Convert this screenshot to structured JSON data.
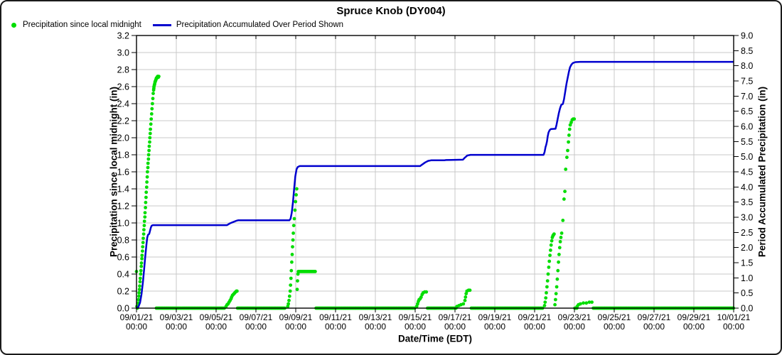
{
  "chart_data": {
    "type": "mixed",
    "title": "Spruce Knob (DY004)",
    "grid": true,
    "legend_position": "top-left",
    "colors": {
      "grid": "#c8c8c8",
      "axis": "#000000",
      "background": "#ffffff"
    },
    "x_axis": {
      "label": "Date/Time (EDT)",
      "range_days": [
        0,
        30
      ],
      "tick_interval_days": 2,
      "tick_labels": [
        [
          "09/01/21",
          "00:00"
        ],
        [
          "09/03/21",
          "00:00"
        ],
        [
          "09/05/21",
          "00:00"
        ],
        [
          "09/07/21",
          "00:00"
        ],
        [
          "09/09/21",
          "00:00"
        ],
        [
          "09/11/21",
          "00:00"
        ],
        [
          "09/13/21",
          "00:00"
        ],
        [
          "09/15/21",
          "00:00"
        ],
        [
          "09/17/21",
          "00:00"
        ],
        [
          "09/19/21",
          "00:00"
        ],
        [
          "09/21/21",
          "00:00"
        ],
        [
          "09/23/21",
          "00:00"
        ],
        [
          "09/25/21",
          "00:00"
        ],
        [
          "09/27/21",
          "00:00"
        ],
        [
          "09/29/21",
          "00:00"
        ],
        [
          "10/01/21",
          "00:00"
        ]
      ]
    },
    "y_left": {
      "label": "Precipitation since local midnight (in)",
      "min": 0,
      "max": 3.2,
      "tick_step": 0.2
    },
    "y_right": {
      "label": "Period Accumulated Precipitation (in)",
      "min": 0,
      "max": 9.0,
      "tick_step": 0.5
    },
    "series": [
      {
        "name": "Precipitation since local midnight",
        "type": "scatter",
        "axis": "left",
        "color": "#00dd00",
        "points": [
          [
            0.0,
            0.43
          ],
          [
            0.02,
            0.02
          ],
          [
            0.04,
            0.0
          ],
          [
            0.06,
            0.02
          ],
          [
            0.08,
            0.06
          ],
          [
            0.1,
            0.1
          ],
          [
            0.12,
            0.14
          ],
          [
            0.13,
            0.18
          ],
          [
            0.15,
            0.22
          ],
          [
            0.16,
            0.26
          ],
          [
            0.18,
            0.31
          ],
          [
            0.19,
            0.35
          ],
          [
            0.21,
            0.4
          ],
          [
            0.22,
            0.44
          ],
          [
            0.24,
            0.49
          ],
          [
            0.25,
            0.53
          ],
          [
            0.27,
            0.58
          ],
          [
            0.28,
            0.62
          ],
          [
            0.3,
            0.67
          ],
          [
            0.31,
            0.72
          ],
          [
            0.33,
            0.77
          ],
          [
            0.34,
            0.82
          ],
          [
            0.36,
            0.87
          ],
          [
            0.37,
            0.92
          ],
          [
            0.39,
            0.97
          ],
          [
            0.4,
            1.02
          ],
          [
            0.42,
            1.07
          ],
          [
            0.43,
            1.12
          ],
          [
            0.45,
            1.18
          ],
          [
            0.46,
            1.24
          ],
          [
            0.48,
            1.3
          ],
          [
            0.49,
            1.36
          ],
          [
            0.51,
            1.42
          ],
          [
            0.52,
            1.48
          ],
          [
            0.54,
            1.54
          ],
          [
            0.55,
            1.6
          ],
          [
            0.57,
            1.65
          ],
          [
            0.58,
            1.7
          ],
          [
            0.6,
            1.75
          ],
          [
            0.61,
            1.8
          ],
          [
            0.63,
            1.85
          ],
          [
            0.64,
            1.9
          ],
          [
            0.66,
            1.95
          ],
          [
            0.67,
            2.0
          ],
          [
            0.69,
            2.05
          ],
          [
            0.7,
            2.1
          ],
          [
            0.72,
            2.16
          ],
          [
            0.74,
            2.22
          ],
          [
            0.76,
            2.28
          ],
          [
            0.78,
            2.34
          ],
          [
            0.8,
            2.4
          ],
          [
            0.82,
            2.46
          ],
          [
            0.84,
            2.52
          ],
          [
            0.86,
            2.56
          ],
          [
            0.87,
            2.58
          ],
          [
            0.88,
            2.6
          ],
          [
            0.9,
            2.62
          ],
          [
            0.91,
            2.63
          ],
          [
            0.93,
            2.65
          ],
          [
            0.94,
            2.66
          ],
          [
            0.96,
            2.67
          ],
          [
            0.97,
            2.68
          ],
          [
            0.99,
            2.69
          ],
          [
            1.0,
            2.7
          ],
          [
            1.02,
            2.7
          ],
          [
            1.04,
            2.71
          ],
          [
            1.06,
            2.72
          ],
          [
            1.08,
            2.72
          ],
          [
            1.1,
            2.71
          ],
          [
            1.12,
            2.72
          ],
          [
            4.5,
            0.02
          ],
          [
            4.55,
            0.04
          ],
          [
            4.6,
            0.05
          ],
          [
            4.65,
            0.07
          ],
          [
            4.7,
            0.09
          ],
          [
            4.75,
            0.11
          ],
          [
            4.78,
            0.13
          ],
          [
            4.82,
            0.15
          ],
          [
            4.86,
            0.16
          ],
          [
            4.9,
            0.17
          ],
          [
            4.94,
            0.18
          ],
          [
            4.98,
            0.19
          ],
          [
            5.02,
            0.2
          ],
          [
            5.05,
            0.2
          ],
          [
            7.6,
            0.02
          ],
          [
            7.63,
            0.05
          ],
          [
            7.66,
            0.09
          ],
          [
            7.69,
            0.14
          ],
          [
            7.72,
            0.2
          ],
          [
            7.74,
            0.27
          ],
          [
            7.76,
            0.35
          ],
          [
            7.78,
            0.44
          ],
          [
            7.8,
            0.54
          ],
          [
            7.82,
            0.63
          ],
          [
            7.84,
            0.72
          ],
          [
            7.86,
            0.8
          ],
          [
            7.88,
            0.88
          ],
          [
            7.9,
            0.97
          ],
          [
            7.93,
            1.05
          ],
          [
            7.96,
            1.15
          ],
          [
            7.99,
            1.25
          ],
          [
            8.02,
            1.33
          ],
          [
            8.05,
            1.4
          ],
          [
            8.07,
            0.22
          ],
          [
            8.09,
            0.32
          ],
          [
            8.11,
            0.4
          ],
          [
            14.08,
            0.02
          ],
          [
            14.12,
            0.05
          ],
          [
            14.16,
            0.08
          ],
          [
            14.2,
            0.1
          ],
          [
            14.25,
            0.11
          ],
          [
            14.3,
            0.13
          ],
          [
            14.35,
            0.16
          ],
          [
            14.4,
            0.18
          ],
          [
            14.48,
            0.19
          ],
          [
            14.56,
            0.19
          ],
          [
            16.1,
            0.02
          ],
          [
            16.2,
            0.03
          ],
          [
            16.3,
            0.04
          ],
          [
            16.42,
            0.05
          ],
          [
            16.5,
            0.09
          ],
          [
            16.53,
            0.13
          ],
          [
            16.56,
            0.17
          ],
          [
            16.6,
            0.2
          ],
          [
            16.68,
            0.21
          ],
          [
            16.75,
            0.21
          ],
          [
            20.5,
            0.03
          ],
          [
            20.53,
            0.07
          ],
          [
            20.56,
            0.12
          ],
          [
            20.59,
            0.18
          ],
          [
            20.62,
            0.25
          ],
          [
            20.65,
            0.32
          ],
          [
            20.68,
            0.4
          ],
          [
            20.71,
            0.48
          ],
          [
            20.74,
            0.55
          ],
          [
            20.77,
            0.62
          ],
          [
            20.8,
            0.68
          ],
          [
            20.83,
            0.74
          ],
          [
            20.86,
            0.79
          ],
          [
            20.89,
            0.83
          ],
          [
            20.92,
            0.85
          ],
          [
            20.95,
            0.86
          ],
          [
            20.98,
            0.87
          ],
          [
            21.02,
            0.04
          ],
          [
            21.05,
            0.1
          ],
          [
            21.08,
            0.17
          ],
          [
            21.11,
            0.25
          ],
          [
            21.14,
            0.34
          ],
          [
            21.17,
            0.44
          ],
          [
            21.2,
            0.54
          ],
          [
            21.23,
            0.63
          ],
          [
            21.26,
            0.71
          ],
          [
            21.29,
            0.78
          ],
          [
            21.32,
            0.83
          ],
          [
            21.36,
            0.88
          ],
          [
            21.42,
            1.03
          ],
          [
            21.48,
            1.28
          ],
          [
            21.52,
            1.37
          ],
          [
            21.56,
            1.63
          ],
          [
            21.62,
            1.77
          ],
          [
            21.66,
            1.85
          ],
          [
            21.7,
            1.95
          ],
          [
            21.73,
            2.03
          ],
          [
            21.76,
            2.1
          ],
          [
            21.79,
            2.15
          ],
          [
            21.84,
            2.18
          ],
          [
            21.89,
            2.21
          ],
          [
            21.94,
            2.22
          ],
          [
            21.99,
            2.22
          ],
          [
            22.14,
            0.02
          ],
          [
            22.2,
            0.04
          ],
          [
            22.3,
            0.05
          ],
          [
            22.45,
            0.06
          ],
          [
            22.6,
            0.06
          ],
          [
            22.75,
            0.07
          ],
          [
            22.88,
            0.07
          ]
        ],
        "baseline_runs": [
          {
            "from": 1.0,
            "to": 4.45,
            "value": 0.0,
            "step": 0.055
          },
          {
            "from": 5.08,
            "to": 7.45,
            "value": 0.0,
            "step": 0.055
          },
          {
            "from": 8.13,
            "to": 9.0,
            "value": 0.43,
            "step": 0.05
          },
          {
            "from": 9.02,
            "to": 14.02,
            "value": 0.0,
            "step": 0.055
          },
          {
            "from": 14.62,
            "to": 16.05,
            "value": 0.0,
            "step": 0.055
          },
          {
            "from": 16.82,
            "to": 20.44,
            "value": 0.0,
            "step": 0.055
          },
          {
            "from": 22.02,
            "to": 22.12,
            "value": 0.0,
            "step": 0.05
          },
          {
            "from": 22.95,
            "to": 30.0,
            "value": 0.0,
            "step": 0.055
          }
        ]
      },
      {
        "name": "Precipitation Accumulated Over Period Shown",
        "type": "line",
        "axis": "right",
        "color": "#0000ce",
        "points": [
          [
            0,
            0
          ],
          [
            0.1,
            0.05
          ],
          [
            0.18,
            0.18
          ],
          [
            0.25,
            0.45
          ],
          [
            0.32,
            0.85
          ],
          [
            0.38,
            1.25
          ],
          [
            0.44,
            1.7
          ],
          [
            0.5,
            2.1
          ],
          [
            0.54,
            2.33
          ],
          [
            0.58,
            2.42
          ],
          [
            0.64,
            2.45
          ],
          [
            0.68,
            2.55
          ],
          [
            0.72,
            2.66
          ],
          [
            0.76,
            2.72
          ],
          [
            0.82,
            2.74
          ],
          [
            4.55,
            2.74
          ],
          [
            4.7,
            2.8
          ],
          [
            4.85,
            2.84
          ],
          [
            5.0,
            2.88
          ],
          [
            5.1,
            2.9
          ],
          [
            7.68,
            2.9
          ],
          [
            7.74,
            2.95
          ],
          [
            7.8,
            3.15
          ],
          [
            7.86,
            3.5
          ],
          [
            7.92,
            3.95
          ],
          [
            7.98,
            4.35
          ],
          [
            8.04,
            4.58
          ],
          [
            8.1,
            4.66
          ],
          [
            8.2,
            4.69
          ],
          [
            14.25,
            4.69
          ],
          [
            14.35,
            4.74
          ],
          [
            14.5,
            4.81
          ],
          [
            14.65,
            4.86
          ],
          [
            14.8,
            4.88
          ],
          [
            15.45,
            4.88
          ],
          [
            15.55,
            4.89
          ],
          [
            16.4,
            4.9
          ],
          [
            16.5,
            4.97
          ],
          [
            16.62,
            5.04
          ],
          [
            16.78,
            5.06
          ],
          [
            20.45,
            5.06
          ],
          [
            20.5,
            5.15
          ],
          [
            20.55,
            5.32
          ],
          [
            20.58,
            5.38
          ],
          [
            20.62,
            5.5
          ],
          [
            20.66,
            5.68
          ],
          [
            20.7,
            5.8
          ],
          [
            20.76,
            5.88
          ],
          [
            20.82,
            5.91
          ],
          [
            21.05,
            5.92
          ],
          [
            21.1,
            6.05
          ],
          [
            21.16,
            6.25
          ],
          [
            21.22,
            6.45
          ],
          [
            21.28,
            6.6
          ],
          [
            21.34,
            6.71
          ],
          [
            21.42,
            6.74
          ],
          [
            21.48,
            6.9
          ],
          [
            21.54,
            7.15
          ],
          [
            21.6,
            7.4
          ],
          [
            21.66,
            7.6
          ],
          [
            21.72,
            7.8
          ],
          [
            21.78,
            7.95
          ],
          [
            21.85,
            8.04
          ],
          [
            21.92,
            8.09
          ],
          [
            22.05,
            8.12
          ],
          [
            22.3,
            8.13
          ],
          [
            30,
            8.13
          ]
        ]
      }
    ]
  }
}
